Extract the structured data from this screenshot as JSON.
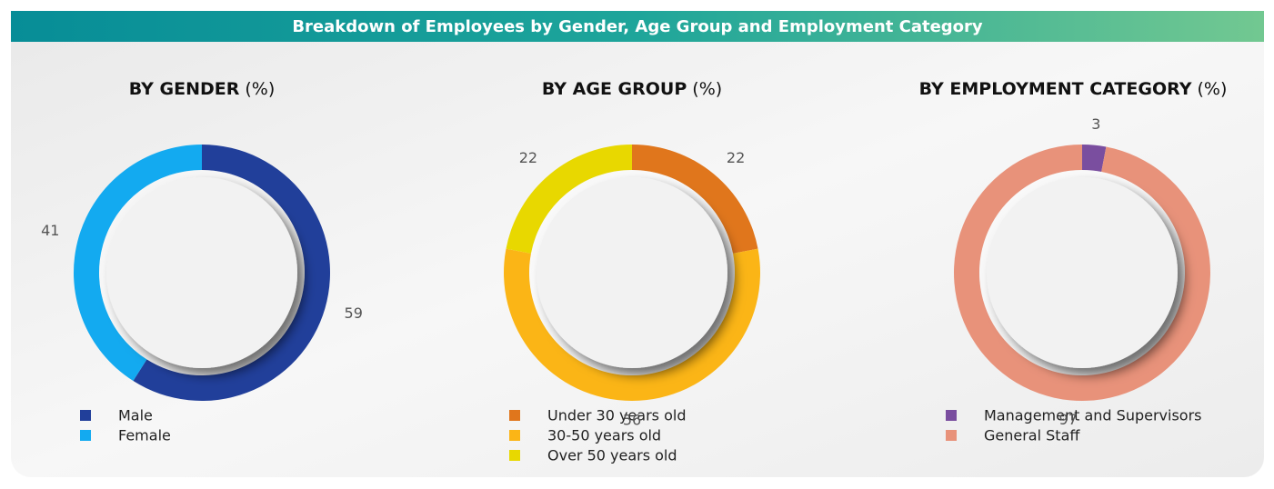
{
  "title": "Breakdown of Employees by Gender, Age Group and Employment Category",
  "chart_data": [
    {
      "type": "donut",
      "title": "BY GENDER",
      "unit": "(%)",
      "categories": [
        "Male",
        "Female"
      ],
      "values": [
        59,
        41
      ],
      "colors": [
        "#213f9a",
        "#13aaf0"
      ]
    },
    {
      "type": "donut",
      "title": "BY AGE GROUP",
      "unit": "(%)",
      "categories": [
        "Under 30 years old",
        "30-50 years old",
        "Over 50 years old"
      ],
      "values": [
        22,
        56,
        22
      ],
      "colors": [
        "#e0761c",
        "#fbb516",
        "#e8d800"
      ]
    },
    {
      "type": "donut",
      "title": "BY EMPLOYMENT CATEGORY",
      "unit": "(%)",
      "categories": [
        "Management and Supervisors",
        "General Staff"
      ],
      "values": [
        3,
        97
      ],
      "colors": [
        "#7a4e9f",
        "#e8927a"
      ]
    }
  ]
}
